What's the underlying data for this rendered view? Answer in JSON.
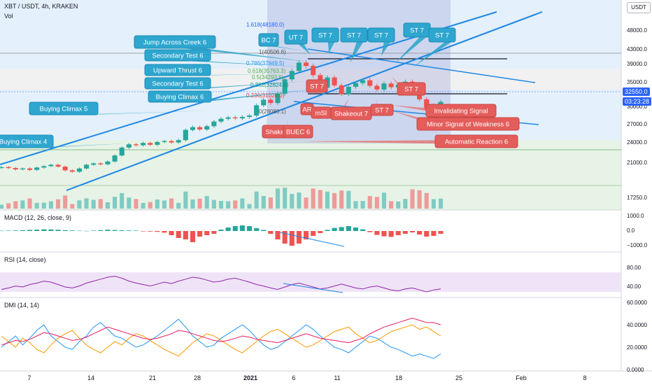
{
  "header": {
    "symbol": "XBT / USDT, 4h, KRAKEN",
    "volume_label": "Vol",
    "quote_currency": "USDT"
  },
  "price_axis": {
    "ticks": [
      "48000.0",
      "43000.0",
      "39000.0",
      "35000.0",
      "30000.0",
      "27000.0",
      "24000.0",
      "21000.0",
      "17250.0"
    ],
    "last_price": "32550.0",
    "countdown": "03:23:28"
  },
  "time_axis": {
    "ticks": [
      "7",
      "14",
      "21",
      "28",
      "2021",
      "6",
      "11",
      "18",
      "25",
      "Feb",
      "8"
    ]
  },
  "fib_levels": [
    {
      "label": "1.618(48180.0)",
      "color": "#2962ff"
    },
    {
      "label": "1(40506.6)",
      "color": "#555555"
    },
    {
      "label": "0.786(37849.5)",
      "color": "#2196f3"
    },
    {
      "label": "0.618(35763.3)",
      "color": "#4caf50"
    },
    {
      "label": "0.5(34293.6)",
      "color": "#4caf50"
    },
    {
      "label": "0.382(32824.0)",
      "color": "#009688"
    },
    {
      "label": "0.236(31020.0)",
      "color": "#e53935"
    },
    {
      "label": "0(28080.1)",
      "color": "#555555"
    }
  ],
  "annotations_teal": [
    "Jump Across Creek 6",
    "Secondary Test 6",
    "Upward Thrust 6",
    "Secondary Test 6",
    "Buying Climax 6",
    "Buying Climax 5",
    "Buying Climax 4",
    "BC 7",
    "UT 7",
    "ST 7",
    "ST 7",
    "ST 7",
    "ST 7",
    "ST 7"
  ],
  "annotations_red": [
    "ST 7",
    "AR",
    "mSI",
    "Shakeout 7",
    "ST 7",
    "ST 7",
    "Shake",
    "BUEC 6",
    "Invalidating Signal",
    "Minor Signal of Weakness 6",
    "Automatic Reaction 6"
  ],
  "macd": {
    "title": "MACD (12, 26, close, 9)",
    "ticks": [
      "1000.0",
      "0.0",
      "−1000.0"
    ]
  },
  "rsi": {
    "title": "RSI (14, close)",
    "ticks": [
      "80.00",
      "40.00"
    ]
  },
  "dmi": {
    "title": "DMI (14, 14)",
    "ticks": [
      "60.0000",
      "40.0000",
      "20.0000",
      "0.0000"
    ]
  },
  "chart_data": {
    "type": "candlestick",
    "close_series": [
      18500,
      18300,
      18000,
      18200,
      17900,
      18400,
      18700,
      19000,
      18600,
      17800,
      17500,
      18200,
      19000,
      19300,
      19100,
      19700,
      21000,
      22700,
      23400,
      23200,
      23700,
      23300,
      23900,
      24100,
      23800,
      24300,
      26500,
      27100,
      26600,
      27300,
      28300,
      28900,
      29200,
      29000,
      29300,
      29600,
      31800,
      33000,
      32300,
      34300,
      37400,
      39200,
      41000,
      40300,
      38300,
      35600,
      37800,
      36100,
      34200,
      35800,
      36600,
      37200,
      36000,
      35200,
      36500,
      35700,
      36200,
      36900,
      34800,
      33100,
      30900,
      31800,
      32550
    ],
    "macd_hist": [
      20,
      30,
      40,
      60,
      80,
      100,
      120,
      110,
      90,
      60,
      40,
      20,
      10,
      30,
      60,
      90,
      70,
      50,
      40,
      30,
      -30,
      -40,
      -60,
      -120,
      -300,
      -500,
      -600,
      -800,
      -400,
      -300,
      -200,
      100,
      250,
      350,
      400,
      350,
      200,
      80,
      -200,
      -600,
      -900,
      -1050,
      -900,
      -600,
      -350,
      -150,
      80,
      220,
      280,
      350,
      250,
      120,
      -80,
      -280,
      -380,
      -420,
      -300,
      -200,
      -100,
      -250,
      -400,
      -350,
      -200
    ],
    "rsi": [
      45,
      48,
      52,
      50,
      55,
      58,
      62,
      60,
      55,
      50,
      48,
      52,
      58,
      62,
      66,
      70,
      72,
      68,
      62,
      58,
      55,
      52,
      56,
      60,
      57,
      62,
      66,
      70,
      68,
      64,
      60,
      62,
      66,
      68,
      64,
      60,
      55,
      52,
      48,
      45,
      50,
      55,
      58,
      54,
      50,
      46,
      48,
      52,
      56,
      52,
      48,
      46,
      50,
      52,
      48,
      44,
      42,
      46,
      48,
      44,
      40,
      44,
      46
    ],
    "dmi_plus": [
      20,
      25,
      30,
      22,
      28,
      35,
      40,
      30,
      25,
      20,
      18,
      25,
      30,
      38,
      42,
      36,
      30,
      28,
      24,
      20,
      22,
      26,
      30,
      35,
      40,
      45,
      38,
      30,
      25,
      20,
      22,
      28,
      32,
      36,
      40,
      35,
      28,
      22,
      18,
      20,
      25,
      30,
      35,
      40,
      36,
      30,
      25,
      20,
      18,
      15,
      20,
      25,
      30,
      28,
      24,
      20,
      18,
      15,
      12,
      14,
      12,
      10,
      14
    ],
    "dmi_minus": [
      30,
      25,
      20,
      28,
      24,
      18,
      15,
      22,
      28,
      32,
      35,
      28,
      22,
      18,
      15,
      20,
      25,
      22,
      28,
      32,
      30,
      26,
      22,
      18,
      15,
      12,
      18,
      24,
      28,
      32,
      30,
      26,
      22,
      18,
      15,
      20,
      25,
      30,
      34,
      36,
      32,
      28,
      24,
      20,
      22,
      26,
      30,
      34,
      36,
      38,
      32,
      28,
      24,
      26,
      30,
      34,
      36,
      38,
      40,
      36,
      38,
      34,
      30
    ],
    "adx": [
      22,
      24,
      26,
      25,
      27,
      30,
      33,
      32,
      30,
      28,
      26,
      27,
      29,
      32,
      35,
      38,
      36,
      34,
      32,
      30,
      28,
      27,
      28,
      30,
      32,
      35,
      34,
      32,
      30,
      28,
      26,
      25,
      26,
      28,
      30,
      29,
      27,
      26,
      25,
      24,
      26,
      28,
      30,
      32,
      30,
      28,
      27,
      26,
      25,
      24,
      26,
      28,
      32,
      35,
      38,
      40,
      42,
      44,
      46,
      44,
      42,
      42,
      40
    ]
  }
}
